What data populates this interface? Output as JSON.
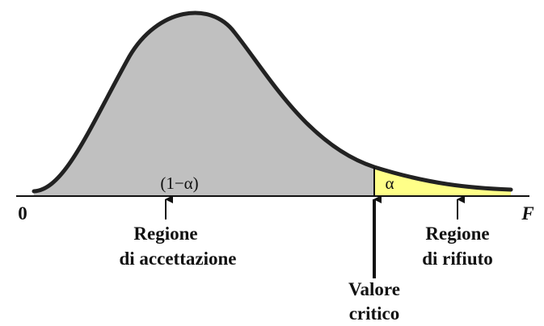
{
  "axis": {
    "origin": "0",
    "variable": "F"
  },
  "regions": {
    "acceptance": {
      "area": "(1−α)",
      "label": [
        "Regione",
        "di accettazione"
      ]
    },
    "rejection": {
      "area": "α",
      "label": [
        "Regione",
        "di rifiuto"
      ]
    }
  },
  "critical_value": {
    "label": [
      "Valore",
      "critico"
    ]
  }
}
